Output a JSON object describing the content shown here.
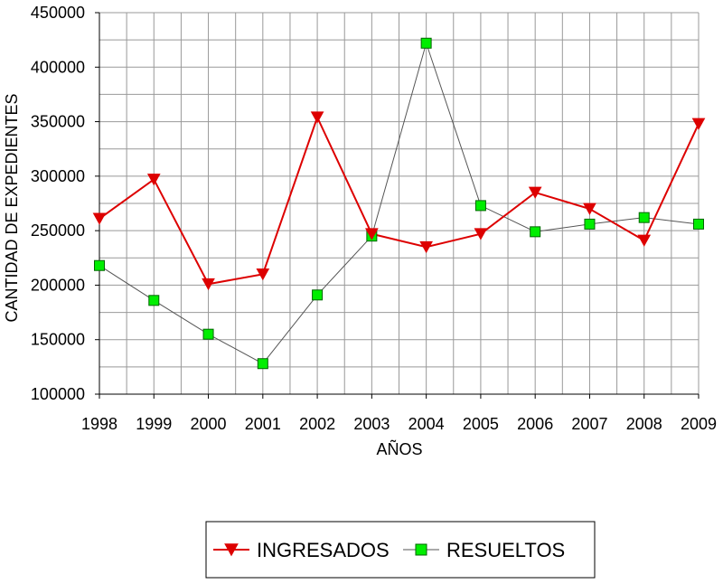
{
  "chart_data": {
    "type": "line",
    "xlabel": "AÑOS",
    "ylabel": "CANTIDAD DE EXPEDIENTES",
    "ylim": [
      100000,
      450000
    ],
    "yticks": [
      "100000",
      "150000",
      "200000",
      "250000",
      "300000",
      "350000",
      "400000",
      "450000"
    ],
    "x": [
      "1998",
      "1999",
      "2000",
      "2001",
      "2002",
      "2003",
      "2004",
      "2005",
      "2006",
      "2007",
      "2008",
      "2009"
    ],
    "grid": true,
    "legend_position": "bottom",
    "series": [
      {
        "name": "INGRESADOS",
        "color": "#dd0000",
        "marker": "triangle-down",
        "values": [
          261000,
          297000,
          201000,
          210000,
          354000,
          247000,
          235000,
          247000,
          285000,
          270000,
          241000,
          348000
        ]
      },
      {
        "name": "RESUELTOS",
        "color": "#555555",
        "marker_color": "#00ee00",
        "marker": "square",
        "values": [
          218000,
          186000,
          155000,
          128000,
          191000,
          245000,
          422000,
          273000,
          249000,
          256000,
          262000,
          256000
        ]
      }
    ]
  }
}
